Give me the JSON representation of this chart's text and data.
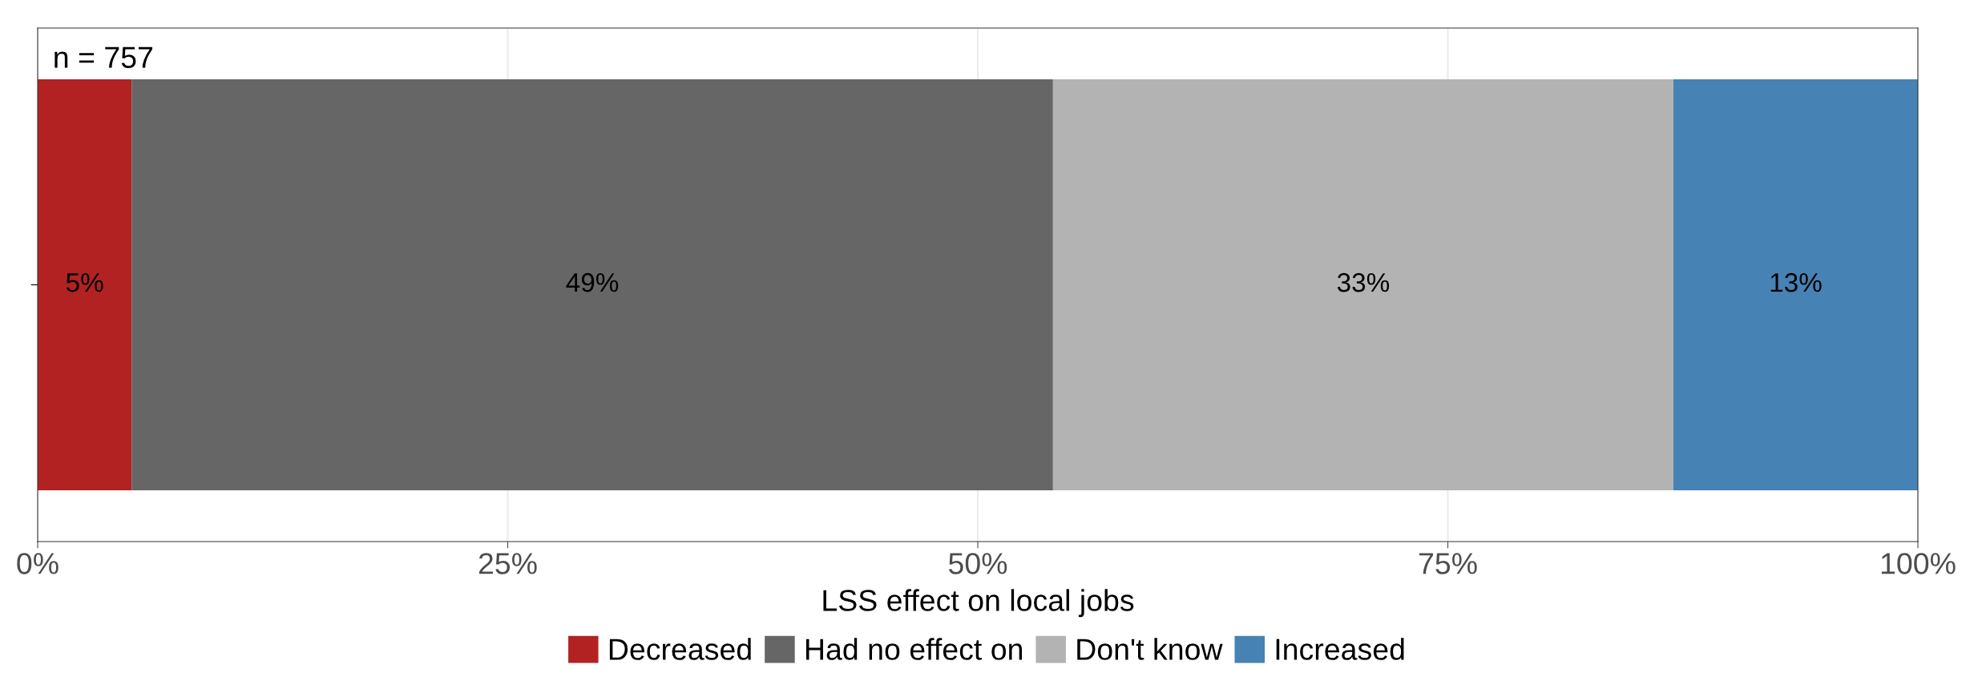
{
  "chart_data": {
    "type": "bar",
    "orientation": "horizontal",
    "stacked": true,
    "categories": [
      null
    ],
    "series": [
      {
        "name": "Decreased",
        "color": "#b22222",
        "values": [
          5
        ],
        "value_labels": [
          "5%"
        ]
      },
      {
        "name": "Had no effect on",
        "color": "#666666",
        "values": [
          49
        ],
        "value_labels": [
          "49%"
        ]
      },
      {
        "name": "Don't know",
        "color": "#b3b3b3",
        "values": [
          33
        ],
        "value_labels": [
          "33%"
        ]
      },
      {
        "name": "Increased",
        "color": "#4682b4",
        "values": [
          13
        ],
        "value_labels": [
          "13%"
        ]
      }
    ],
    "xlabel": "LSS effect on local jobs",
    "xlim": [
      0,
      100
    ],
    "xticks": [
      {
        "value": 0,
        "label": "0%"
      },
      {
        "value": 25,
        "label": "25%"
      },
      {
        "value": 50,
        "label": "50%"
      },
      {
        "value": 75,
        "label": "75%"
      },
      {
        "value": 100,
        "label": "100%"
      }
    ],
    "annotations": [
      "n = 757"
    ],
    "grid": "x",
    "legend": "bottom"
  }
}
